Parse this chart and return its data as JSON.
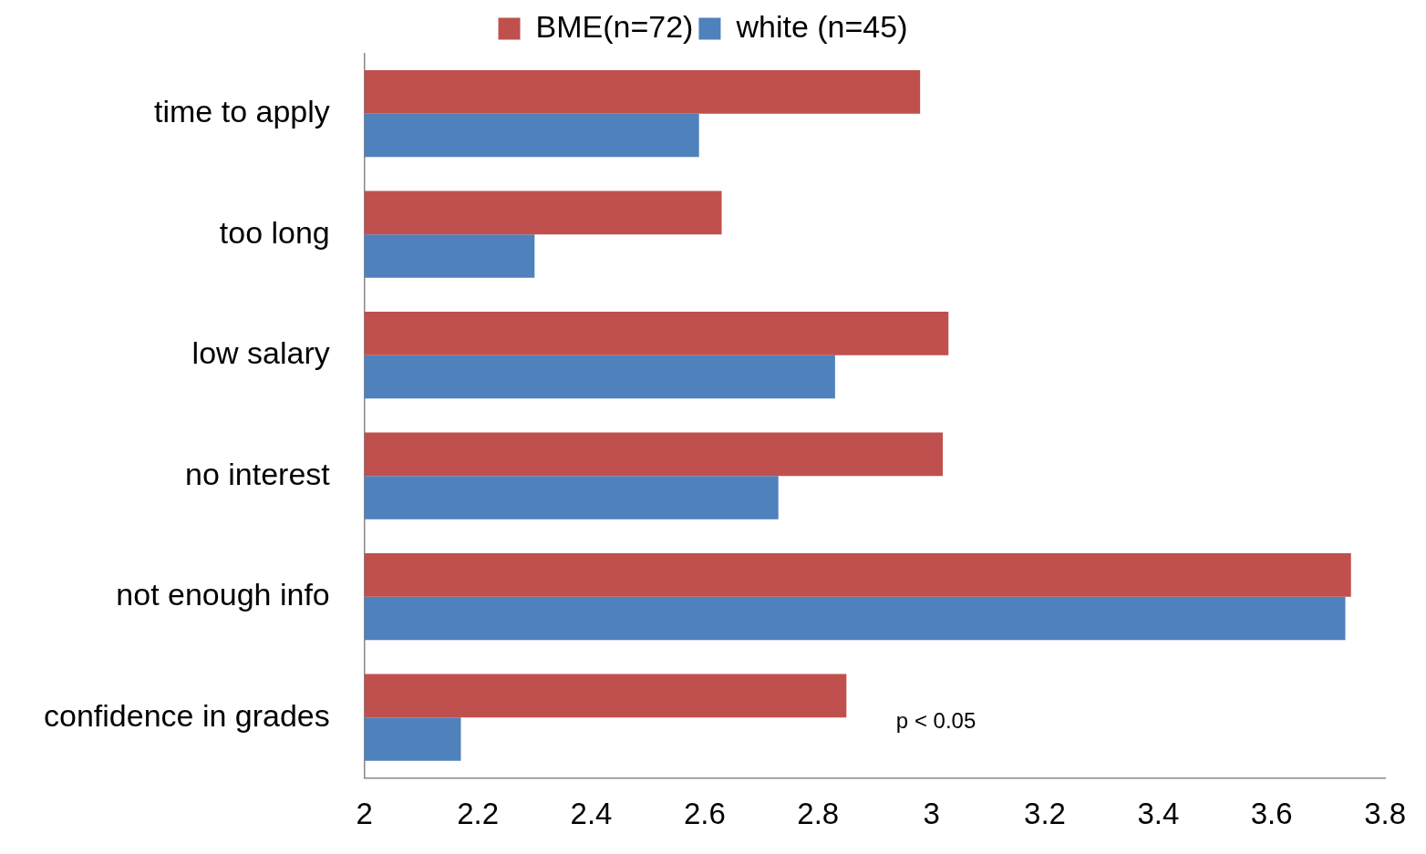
{
  "chart_data": {
    "type": "bar",
    "orientation": "horizontal",
    "categories": [
      "time to apply",
      "too long",
      "low salary",
      "no interest",
      "not enough info",
      "confidence in grades"
    ],
    "series": [
      {
        "name": "BME(n=72)",
        "color": "#c0504d",
        "values": [
          2.98,
          2.63,
          3.03,
          3.02,
          3.74,
          2.85
        ]
      },
      {
        "name": "white (n=45)",
        "color": "#4f81bd",
        "values": [
          2.59,
          2.3,
          2.83,
          2.73,
          3.73,
          2.17
        ]
      }
    ],
    "xlim": [
      2,
      3.8
    ],
    "xticks": [
      2,
      2.2,
      2.4,
      2.6,
      2.8,
      3,
      3.2,
      3.4,
      3.6,
      3.8
    ],
    "grid": false,
    "legend": "top",
    "annotations": [
      "p < 0.05"
    ]
  }
}
